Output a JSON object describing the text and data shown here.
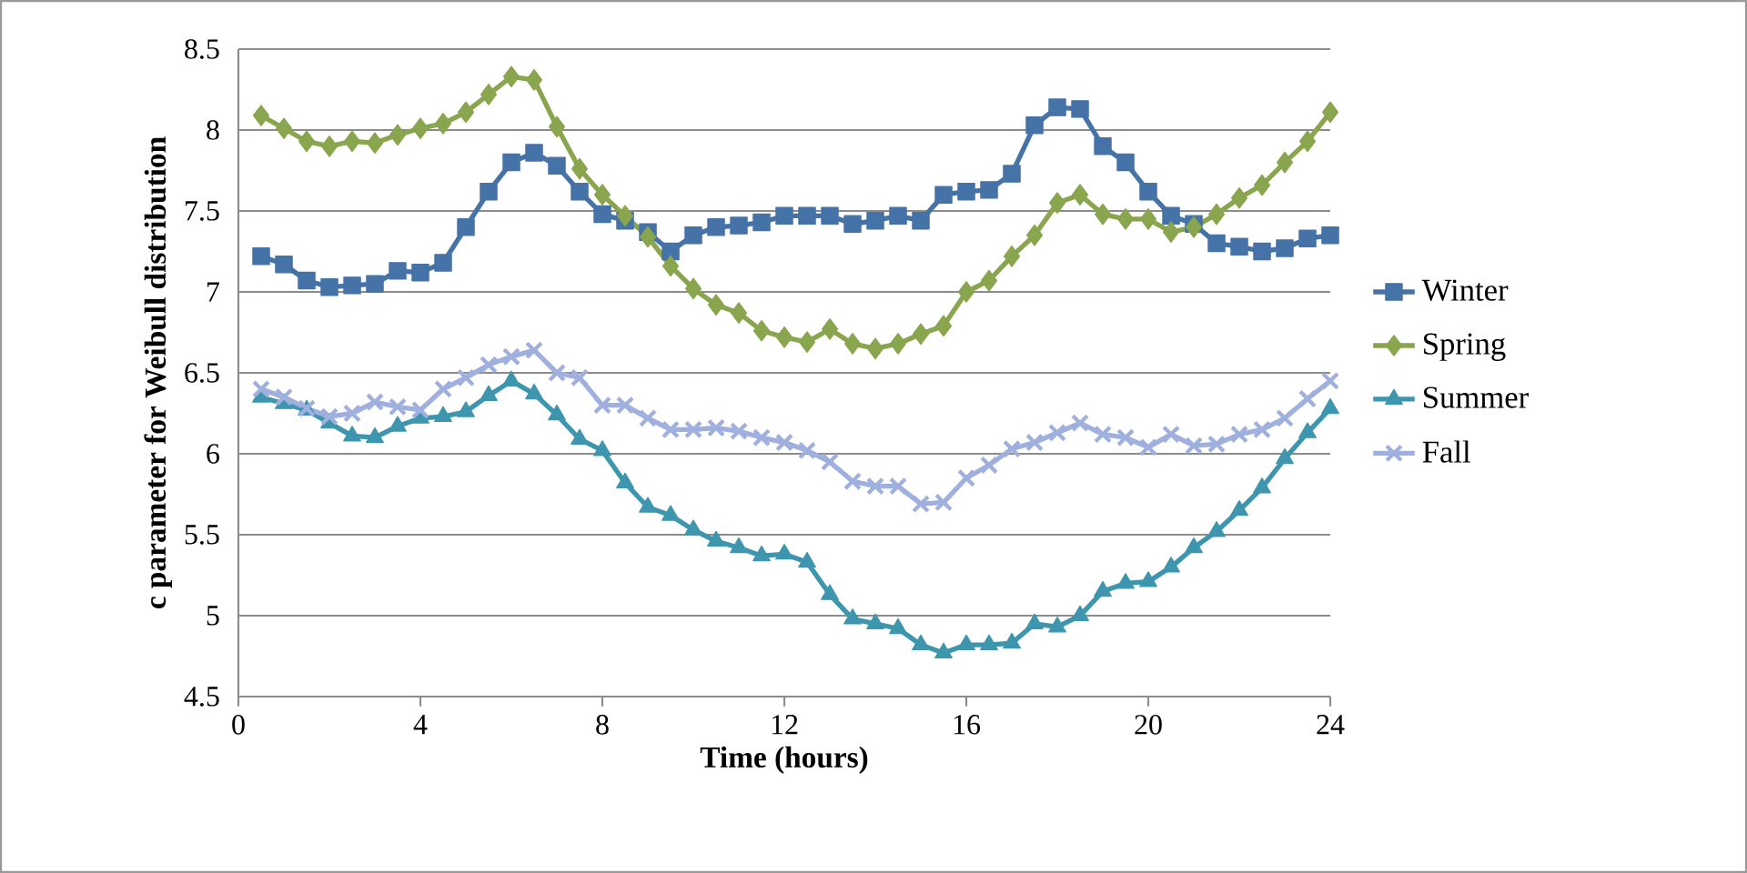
{
  "chart_data": {
    "type": "line",
    "xlabel": "Time (hours)",
    "ylabel": "c parameter for Weibull  distribution",
    "x": [
      0.5,
      1,
      1.5,
      2,
      2.5,
      3,
      3.5,
      4,
      4.5,
      5,
      5.5,
      6,
      6.5,
      7,
      7.5,
      8,
      8.5,
      9,
      9.5,
      10,
      10.5,
      11,
      11.5,
      12,
      12.5,
      13,
      13.5,
      14,
      14.5,
      15,
      15.5,
      16,
      16.5,
      17,
      17.5,
      18,
      18.5,
      19,
      19.5,
      20,
      20.5,
      21,
      21.5,
      22,
      22.5,
      23,
      23.5,
      24
    ],
    "series": [
      {
        "name": "Winter",
        "color": "#4572a7",
        "marker": "square",
        "values": [
          7.22,
          7.17,
          7.07,
          7.03,
          7.04,
          7.05,
          7.13,
          7.12,
          7.18,
          7.4,
          7.62,
          7.8,
          7.86,
          7.78,
          7.62,
          7.48,
          7.44,
          7.37,
          7.25,
          7.35,
          7.4,
          7.41,
          7.43,
          7.47,
          7.47,
          7.47,
          7.42,
          7.44,
          7.47,
          7.44,
          7.6,
          7.62,
          7.63,
          7.73,
          8.03,
          8.14,
          8.13,
          7.9,
          7.8,
          7.62,
          7.47,
          7.42,
          7.3,
          7.28,
          7.25,
          7.27,
          7.33,
          7.35
        ]
      },
      {
        "name": "Spring",
        "color": "#89a54e",
        "marker": "diamond",
        "values": [
          8.09,
          8.01,
          7.93,
          7.9,
          7.93,
          7.92,
          7.97,
          8.01,
          8.04,
          8.11,
          8.22,
          8.33,
          8.31,
          8.02,
          7.76,
          7.6,
          7.47,
          7.34,
          7.16,
          7.02,
          6.92,
          6.87,
          6.76,
          6.72,
          6.69,
          6.77,
          6.68,
          6.65,
          6.68,
          6.74,
          6.79,
          7.0,
          7.07,
          7.22,
          7.35,
          7.55,
          7.6,
          7.48,
          7.45,
          7.45,
          7.37,
          7.4,
          7.48,
          7.58,
          7.66,
          7.8,
          7.93,
          8.11
        ]
      },
      {
        "name": "Summer",
        "color": "#3d96ae",
        "marker": "triangle",
        "values": [
          6.35,
          6.31,
          6.27,
          6.19,
          6.11,
          6.1,
          6.17,
          6.22,
          6.23,
          6.26,
          6.36,
          6.45,
          6.37,
          6.24,
          6.09,
          6.02,
          5.82,
          5.67,
          5.62,
          5.53,
          5.46,
          5.42,
          5.37,
          5.38,
          5.33,
          5.13,
          4.98,
          4.95,
          4.92,
          4.82,
          4.77,
          4.82,
          4.82,
          4.83,
          4.95,
          4.93,
          5.0,
          5.15,
          5.2,
          5.21,
          5.3,
          5.42,
          5.52,
          5.65,
          5.79,
          5.97,
          6.13,
          6.28
        ]
      },
      {
        "name": "Fall",
        "color": "#a0b0de",
        "marker": "cross",
        "values": [
          6.4,
          6.35,
          6.28,
          6.23,
          6.25,
          6.32,
          6.29,
          6.27,
          6.4,
          6.47,
          6.55,
          6.6,
          6.64,
          6.5,
          6.47,
          6.3,
          6.3,
          6.22,
          6.15,
          6.15,
          6.16,
          6.14,
          6.1,
          6.07,
          6.02,
          5.95,
          5.83,
          5.8,
          5.8,
          5.69,
          5.7,
          5.85,
          5.93,
          6.03,
          6.07,
          6.13,
          6.19,
          6.12,
          6.1,
          6.04,
          6.12,
          6.05,
          6.06,
          6.12,
          6.15,
          6.22,
          6.34,
          6.45
        ]
      }
    ],
    "xlim": [
      0,
      24
    ],
    "xticks": [
      0,
      4,
      8,
      12,
      16,
      20,
      24
    ],
    "ylim": [
      4.5,
      8.5
    ],
    "yticks": [
      4.5,
      5,
      5.5,
      6,
      6.5,
      7,
      7.5,
      8,
      8.5
    ],
    "grid": "y",
    "legend": "right",
    "line_style": "solid"
  }
}
